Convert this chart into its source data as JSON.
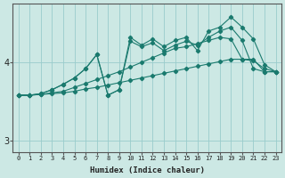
{
  "xlabel": "Humidex (Indice chaleur)",
  "bg_color": "#cce8e4",
  "line_color": "#1a7a6e",
  "grid_color": "#99cccc",
  "x_values": [
    0,
    1,
    2,
    3,
    4,
    5,
    6,
    7,
    8,
    9,
    10,
    11,
    12,
    13,
    14,
    15,
    16,
    17,
    18,
    19,
    20,
    21,
    22,
    23
  ],
  "series1": [
    3.58,
    3.58,
    3.59,
    3.6,
    3.61,
    3.63,
    3.66,
    3.68,
    3.71,
    3.74,
    3.77,
    3.8,
    3.83,
    3.86,
    3.89,
    3.92,
    3.95,
    3.98,
    4.01,
    4.04,
    4.04,
    4.04,
    3.88,
    3.88
  ],
  "series2": [
    3.58,
    3.58,
    3.59,
    3.61,
    3.63,
    3.68,
    3.73,
    3.78,
    3.83,
    3.88,
    3.94,
    4.0,
    4.06,
    4.12,
    4.18,
    4.2,
    4.24,
    4.28,
    4.32,
    4.3,
    4.04,
    4.02,
    3.92,
    3.88
  ],
  "series3": [
    3.58,
    3.58,
    3.6,
    3.65,
    3.72,
    3.8,
    3.92,
    4.1,
    3.58,
    3.65,
    4.27,
    4.2,
    4.25,
    4.15,
    4.22,
    4.27,
    4.22,
    4.32,
    4.4,
    4.45,
    4.28,
    3.92,
    3.88,
    3.88
  ],
  "series4": [
    3.58,
    3.58,
    3.6,
    3.65,
    3.72,
    3.8,
    3.92,
    4.1,
    3.58,
    3.65,
    4.32,
    4.22,
    4.3,
    4.2,
    4.28,
    4.32,
    4.15,
    4.4,
    4.45,
    4.58,
    4.45,
    4.3,
    3.97,
    3.88
  ],
  "ylim": [
    2.85,
    4.75
  ],
  "xlim": [
    -0.5,
    23.5
  ],
  "yticks": [
    3,
    4
  ],
  "xticks": [
    0,
    1,
    2,
    3,
    4,
    5,
    6,
    7,
    8,
    9,
    10,
    11,
    12,
    13,
    14,
    15,
    16,
    17,
    18,
    19,
    20,
    21,
    22,
    23
  ]
}
